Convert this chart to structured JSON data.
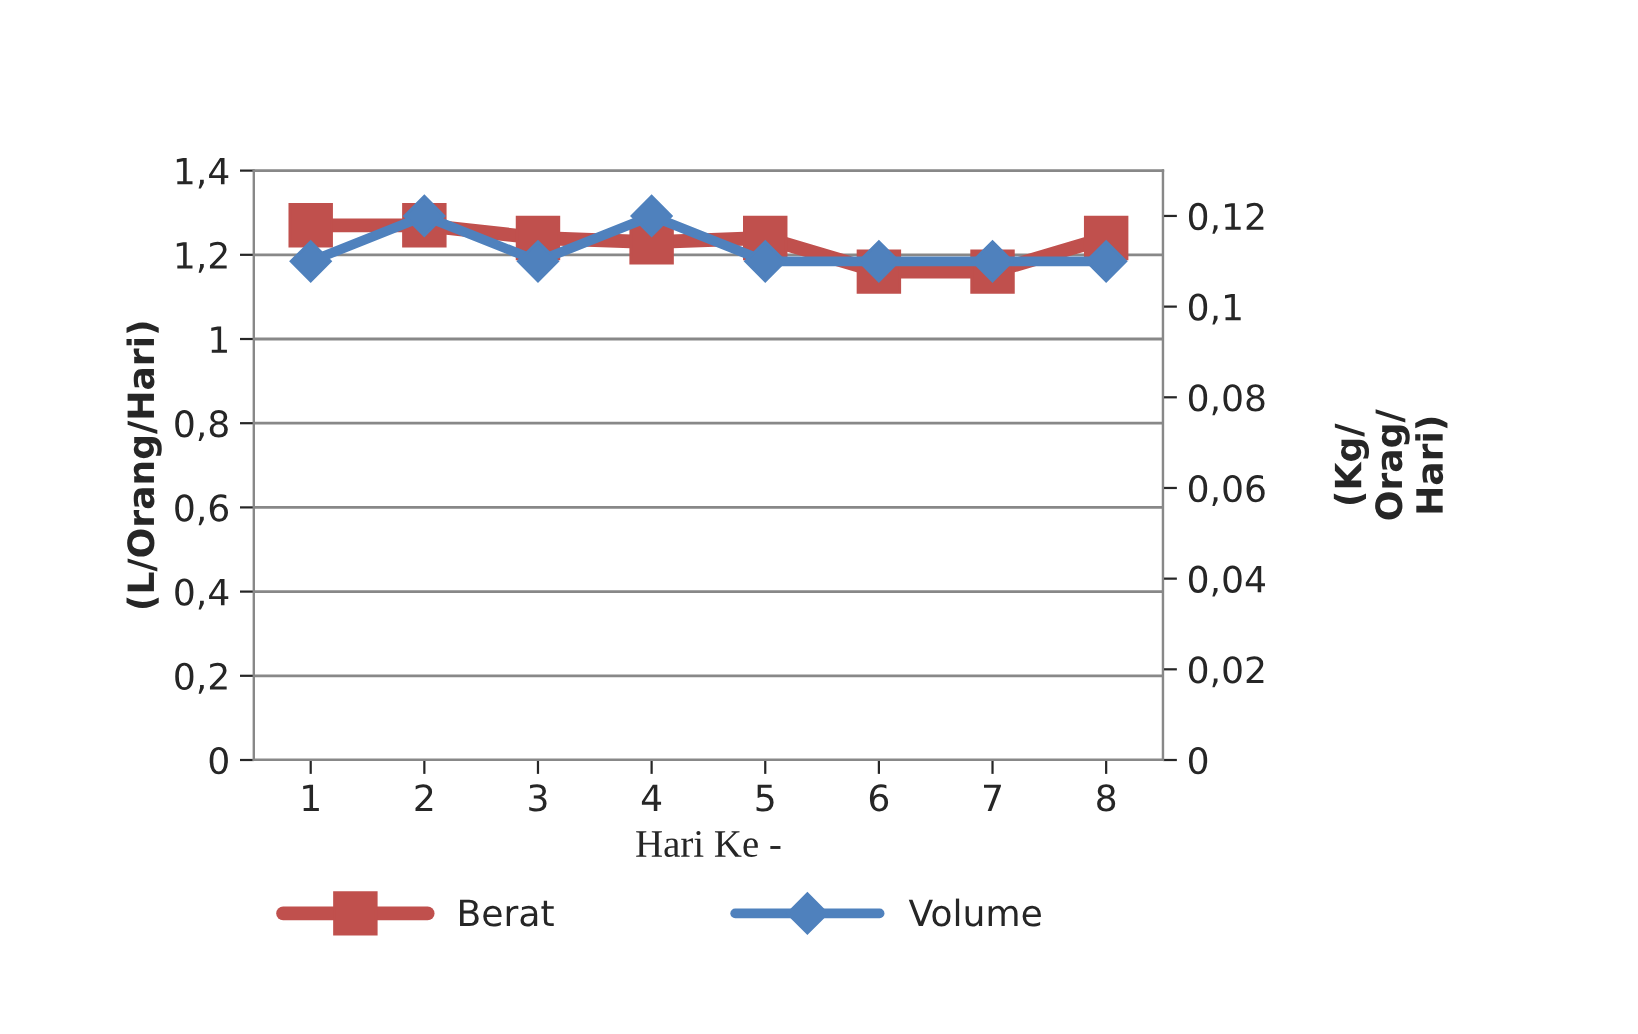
{
  "chart_data": {
    "type": "line",
    "categories": [
      "1",
      "2",
      "3",
      "4",
      "5",
      "6",
      "7",
      "8"
    ],
    "series": [
      {
        "name": "Berat",
        "color": "#c0504d",
        "marker": "square",
        "values": [
          1.27,
          1.27,
          1.24,
          1.23,
          1.24,
          1.16,
          1.16,
          1.24
        ]
      },
      {
        "name": "Volume",
        "color": "#4f81bd",
        "marker": "diamond",
        "axis": "y2",
        "values": [
          0.11,
          0.12,
          0.11,
          0.12,
          0.11,
          0.11,
          0.11,
          0.11
        ]
      }
    ],
    "xlabel": "Hari Ke -",
    "ylabel": "(L/Orang/Hari)",
    "y2label": "(Kg/\nOrag/\nHari)",
    "ylim": [
      0,
      1.4
    ],
    "yticks": [
      {
        "value": 0,
        "label": "0"
      },
      {
        "value": 0.2,
        "label": "0,2"
      },
      {
        "value": 0.4,
        "label": "0,4"
      },
      {
        "value": 0.6,
        "label": "0,6"
      },
      {
        "value": 0.8,
        "label": "0,8"
      },
      {
        "value": 1,
        "label": "1"
      },
      {
        "value": 1.2,
        "label": "1,2"
      },
      {
        "value": 1.4,
        "label": "1,4"
      }
    ],
    "y2lim": [
      0,
      0.13
    ],
    "y2ticks": [
      {
        "value": 0,
        "label": "0"
      },
      {
        "value": 0.02,
        "label": "0,02"
      },
      {
        "value": 0.04,
        "label": "0,04"
      },
      {
        "value": 0.06,
        "label": "0,06"
      },
      {
        "value": 0.08,
        "label": "0,08"
      },
      {
        "value": 0.1,
        "label": "0,1"
      },
      {
        "value": 0.12,
        "label": "0,12"
      }
    ],
    "grid": "y",
    "legend": "bottom",
    "line_style": "solid"
  }
}
